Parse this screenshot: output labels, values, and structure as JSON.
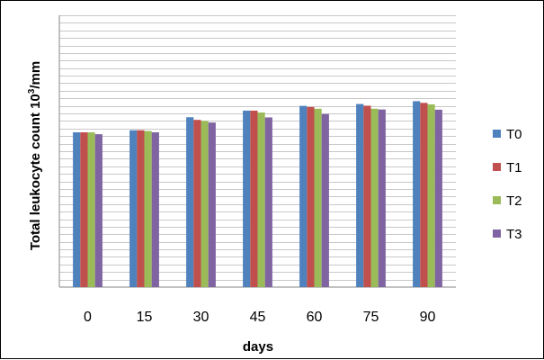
{
  "chart_data": {
    "type": "bar",
    "ylabel_main": "Total leukocyte count 10",
    "ylabel_sup": "3",
    "ylabel_end": "/mm",
    "xlabel": "days",
    "categories": [
      "0",
      "15",
      "30",
      "45",
      "60",
      "75",
      "90"
    ],
    "ylim": [
      0,
      14.4
    ],
    "grid": true,
    "tick_labels_y": false,
    "legend_position": "right",
    "series": [
      {
        "name": "T0",
        "color": "#4f81bd",
        "values": [
          8.2,
          8.31,
          9.0,
          9.35,
          9.6,
          9.7,
          9.85
        ]
      },
      {
        "name": "T1",
        "color": "#c0504d",
        "values": [
          8.2,
          8.31,
          8.86,
          9.35,
          9.54,
          9.61,
          9.76
        ]
      },
      {
        "name": "T2",
        "color": "#9bbb59",
        "values": [
          8.2,
          8.27,
          8.8,
          9.25,
          9.45,
          9.45,
          9.68
        ]
      },
      {
        "name": "T3",
        "color": "#8064a2",
        "values": [
          8.1,
          8.2,
          8.72,
          8.99,
          9.17,
          9.41,
          9.4
        ]
      }
    ]
  }
}
